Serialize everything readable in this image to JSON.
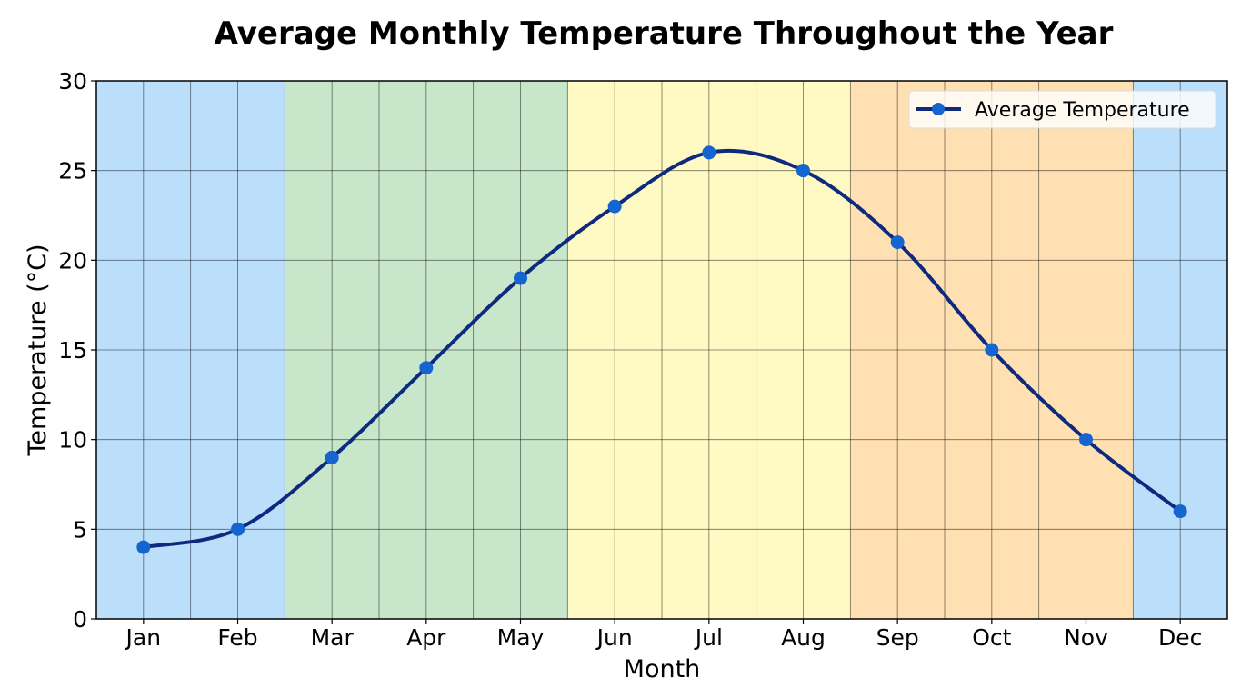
{
  "chart_data": {
    "type": "line",
    "title": "Average Monthly Temperature Throughout the Year",
    "xlabel": "Month",
    "ylabel": "Temperature (°C)",
    "categories": [
      "Jan",
      "Feb",
      "Mar",
      "Apr",
      "May",
      "Jun",
      "Jul",
      "Aug",
      "Sep",
      "Oct",
      "Nov",
      "Dec"
    ],
    "series": [
      {
        "name": "Average Temperature",
        "values": [
          4,
          5,
          9,
          14,
          19,
          23,
          26,
          25,
          21,
          15,
          10,
          6
        ],
        "line_color": "#0d2a7f",
        "marker_color": "#1565d0"
      }
    ],
    "ylim": [
      0,
      30
    ],
    "yticks": [
      0,
      5,
      10,
      15,
      20,
      25,
      30
    ],
    "grid": true,
    "legend": "top-right",
    "smoothed": true,
    "season_bands": [
      {
        "from": "Jan",
        "to": "Feb",
        "color": "#bbdefb"
      },
      {
        "from": "Mar",
        "to": "May",
        "color": "#c8e6c9"
      },
      {
        "from": "Jun",
        "to": "Aug",
        "color": "#fff9c4"
      },
      {
        "from": "Sep",
        "to": "Nov",
        "color": "#ffe0b2"
      },
      {
        "from": "Dec",
        "to": "Dec",
        "color": "#bbdefb"
      }
    ]
  }
}
